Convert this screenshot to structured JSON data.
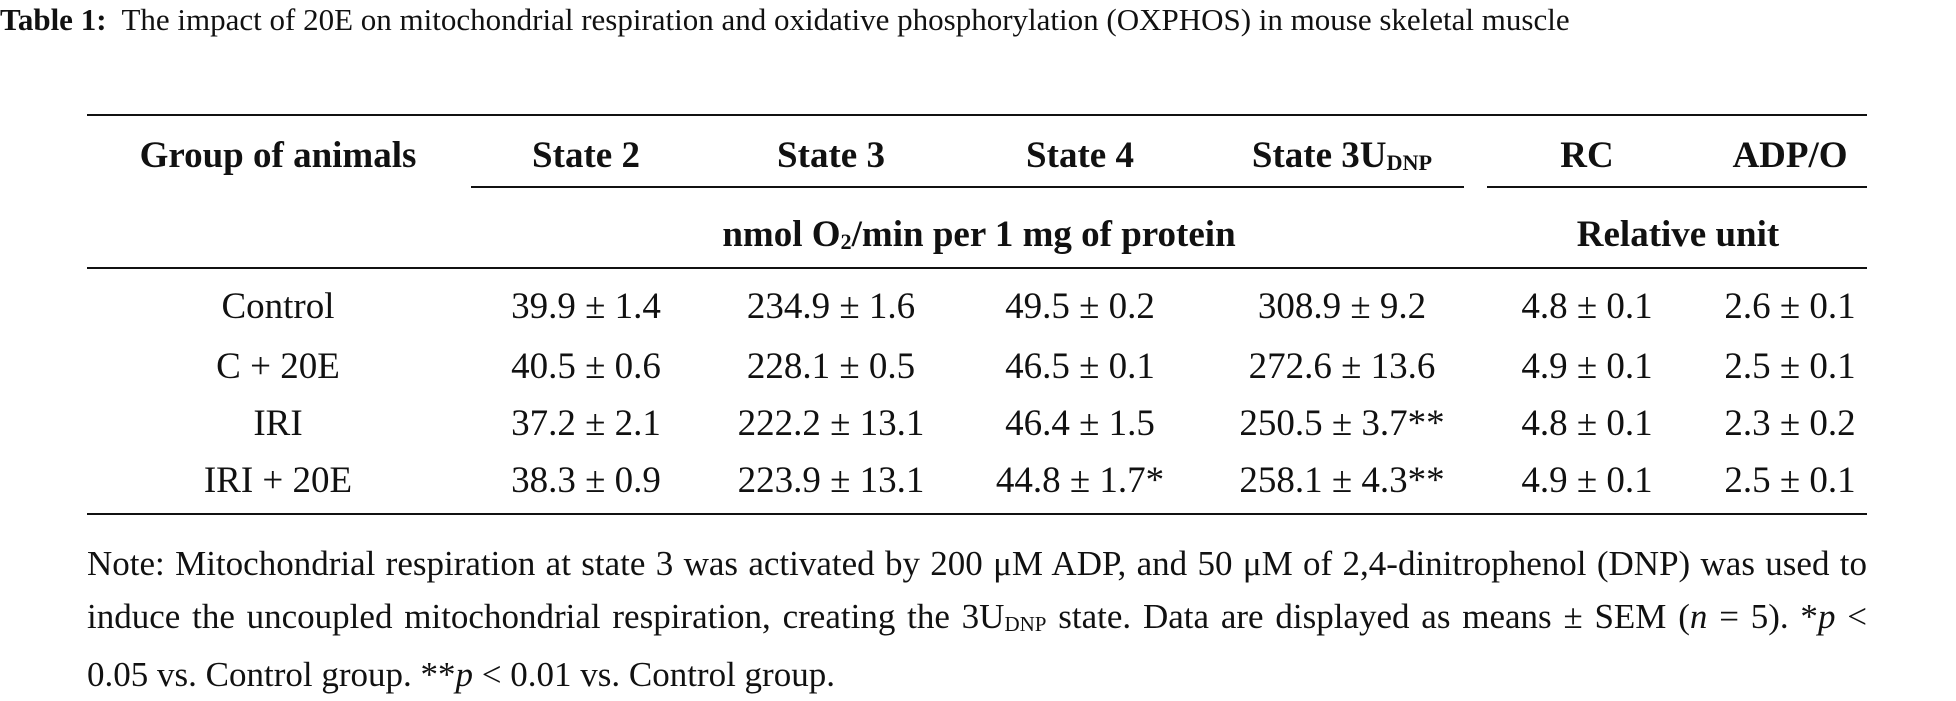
{
  "caption": {
    "label": "Table 1:",
    "text": "The impact of 20E on mitochondrial respiration and oxidative phosphorylation (OXPHOS) in mouse skeletal muscle"
  },
  "table": {
    "header": [
      "Group of animals",
      "State 2",
      "State 3",
      "State 4",
      {
        "main": "State 3U",
        "sub": "DNP"
      },
      "RC",
      "ADP/O"
    ],
    "units": [
      {
        "main": "nmol O",
        "sub": "2",
        "rest": "/min per 1 mg of protein"
      },
      "Relative unit"
    ],
    "rows": [
      [
        "Control",
        "39.9 ± 1.4",
        "234.9 ± 1.6",
        "49.5 ± 0.2",
        "308.9 ± 9.2",
        "4.8 ± 0.1",
        "2.6 ± 0.1"
      ],
      [
        "C + 20E",
        "40.5 ± 0.6",
        "228.1 ± 0.5",
        "46.5 ± 0.1",
        "272.6 ± 13.6",
        "4.9 ± 0.1",
        "2.5 ± 0.1"
      ],
      [
        "IRI",
        "37.2 ± 2.1",
        "222.2 ± 13.1",
        "46.4 ± 1.5",
        "250.5 ± 3.7**",
        "4.8 ± 0.1",
        "2.3 ± 0.2"
      ],
      [
        "IRI + 20E",
        "38.3 ± 0.9",
        "223.9 ± 13.1",
        "44.8 ± 1.7*",
        "258.1 ± 4.3**",
        "4.9 ± 0.1",
        "2.5 ± 0.1"
      ]
    ]
  },
  "note": [
    "Note: Mitochondrial respiration at state 3 was activated by 200 μM ADP, and 50 μM of 2,4-dinitrophenol (DNP) was used to induce the uncoupled mitochondrial respiration, creating the 3U",
    "DNP",
    " state. Data are displayed as means ± SEM (",
    "n",
    " = 5). *",
    "p",
    " < 0.05 vs. Control group. **",
    "p",
    " < 0.01 vs. Control group."
  ]
}
